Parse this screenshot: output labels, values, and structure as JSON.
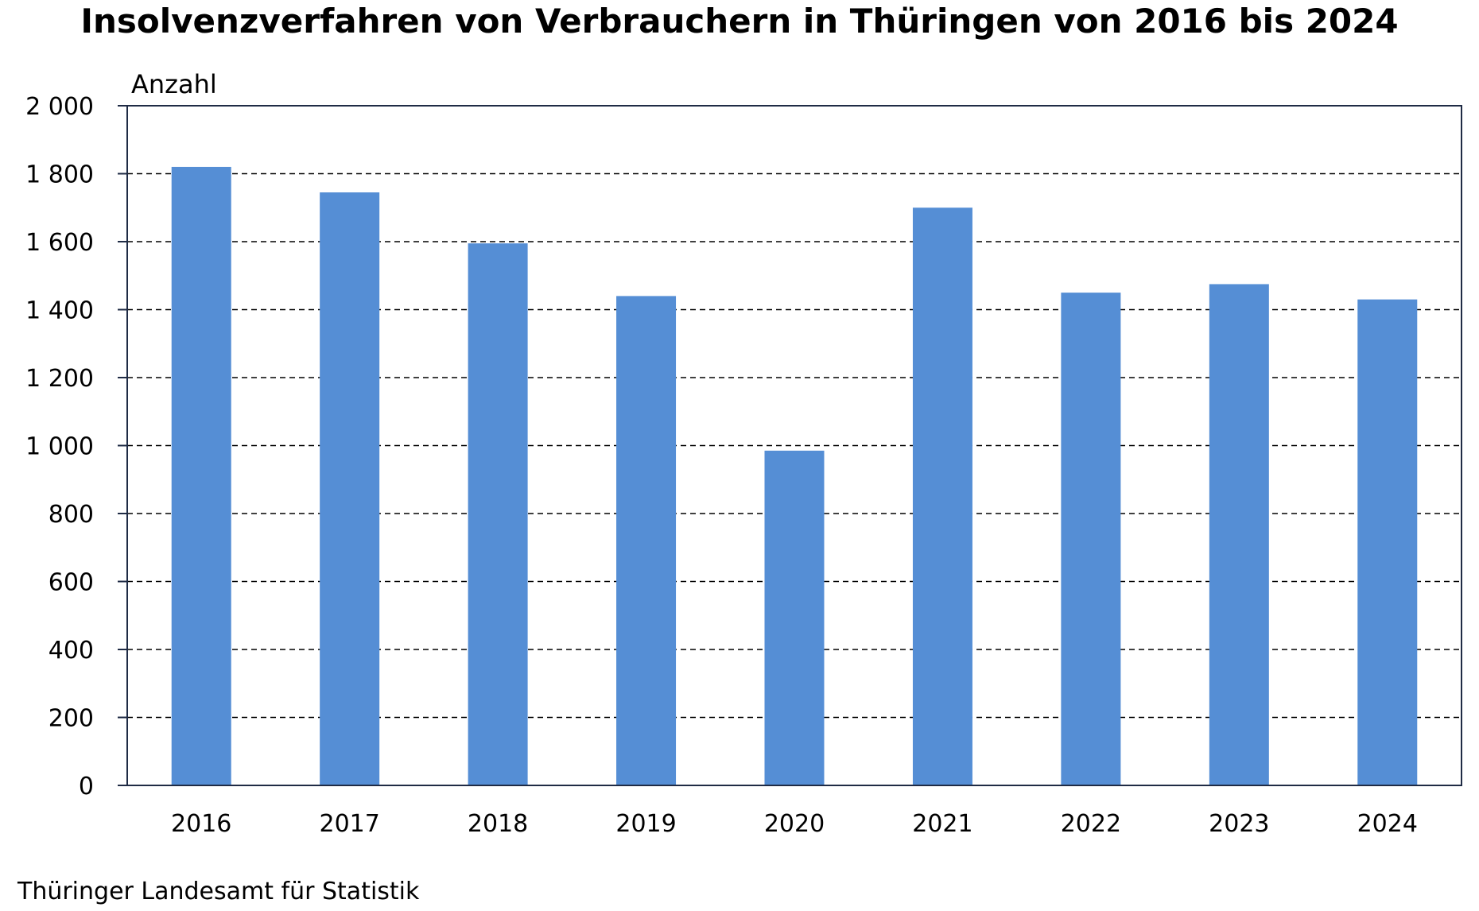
{
  "chart_data": {
    "type": "bar",
    "title": "Insolvenzverfahren von Verbrauchern in Thüringen von 2016 bis 2024",
    "ylabel": "Anzahl",
    "xlabel": "",
    "categories": [
      "2016",
      "2017",
      "2018",
      "2019",
      "2020",
      "2021",
      "2022",
      "2023",
      "2024"
    ],
    "values": [
      1820,
      1745,
      1595,
      1440,
      985,
      1700,
      1450,
      1475,
      1430
    ],
    "ylim": [
      0,
      2000
    ],
    "yticks": [
      0,
      200,
      400,
      600,
      800,
      1000,
      1200,
      1400,
      1600,
      1800,
      2000
    ],
    "ytick_labels": [
      "0",
      "200",
      "400",
      "600",
      "800",
      "1 000",
      "1 200",
      "1 400",
      "1 600",
      "1 800",
      "2 000"
    ],
    "grid": true,
    "bar_color": "#558ed5",
    "source": "Thüringer Landesamt für Statistik"
  }
}
